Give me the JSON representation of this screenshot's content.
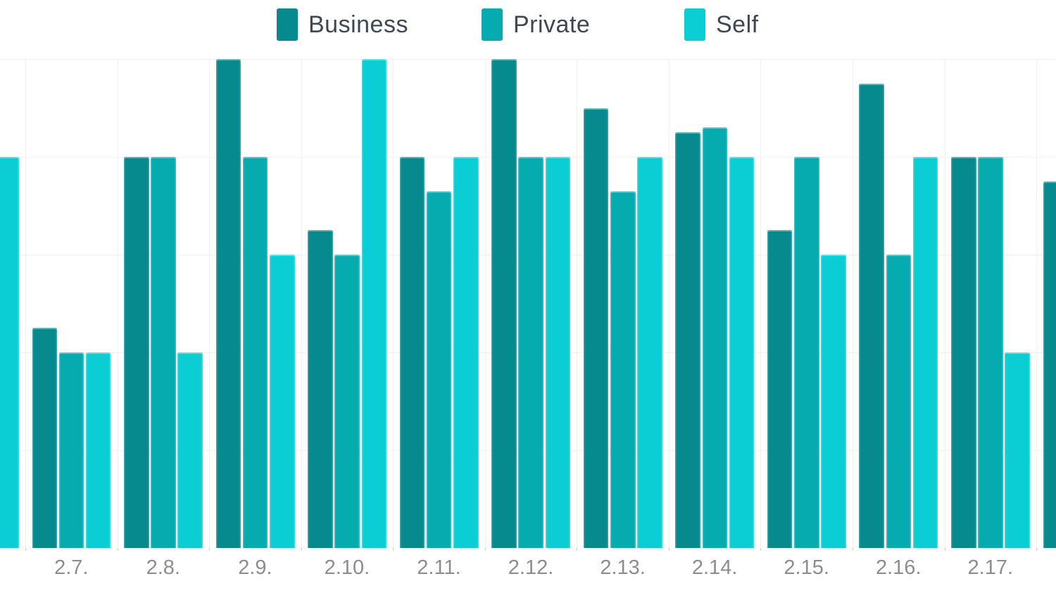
{
  "chart_data": {
    "type": "bar",
    "title": "",
    "xlabel": "",
    "ylabel": "",
    "y_axis_labels_visible": false,
    "value_scale_note": "No y-axis labels visible; values normalized so that one horizontal gridline interval = 20 and chart top = 100.",
    "ylim": [
      0,
      100
    ],
    "grid": true,
    "legend_position": "top-center",
    "categories": [
      "2.7.",
      "2.8.",
      "2.9.",
      "2.10.",
      "2.11.",
      "2.12.",
      "2.13.",
      "2.14.",
      "2.15.",
      "2.16.",
      "2.17."
    ],
    "series": [
      {
        "name": "Business",
        "color": "#078a8e",
        "values": [
          45,
          80,
          100,
          65,
          80,
          100,
          90,
          85,
          65,
          95,
          80
        ]
      },
      {
        "name": "Private",
        "color": "#06abb0",
        "values": [
          40,
          80,
          80,
          60,
          73,
          80,
          73,
          86,
          80,
          60,
          80
        ]
      },
      {
        "name": "Self",
        "color": "#0bced4",
        "values": [
          40,
          40,
          60,
          100,
          80,
          80,
          80,
          80,
          60,
          80,
          40
        ]
      }
    ],
    "partial_edge_bars": {
      "left": {
        "series": "Self",
        "value": 80
      },
      "right": {
        "series": "Business",
        "value": 75
      }
    }
  },
  "colors": {
    "background": "#ffffff",
    "gridline": "#f1f1f1",
    "axis_tick": "#cccccc",
    "legend_text": "#3e4754",
    "x_label_text": "#8d8d8d"
  }
}
